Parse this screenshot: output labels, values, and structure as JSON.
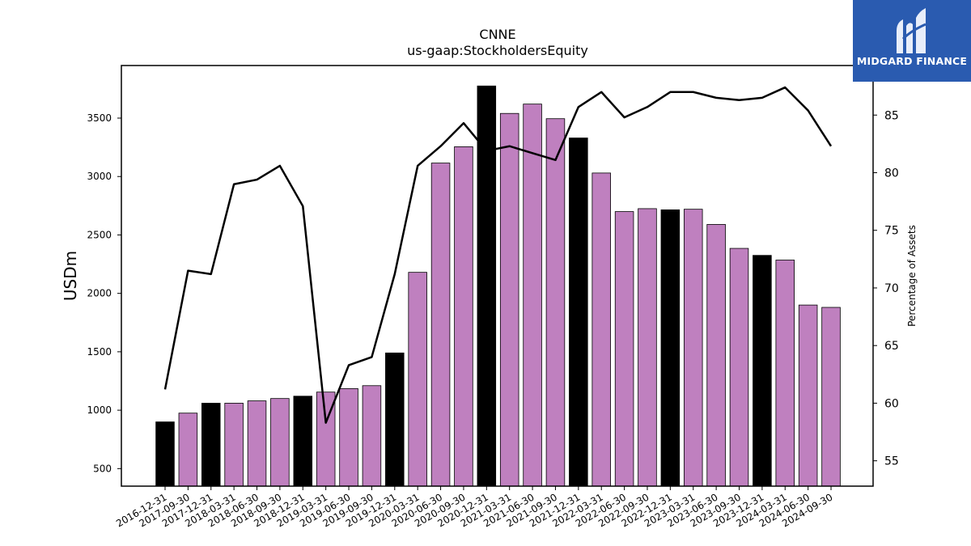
{
  "chart_data": {
    "type": "bar",
    "title": "CNNE",
    "subtitle": "us-gaap:StockholdersEquity",
    "xlabel": "",
    "ylabel": "USDm",
    "y2label": "Percentage of Assets",
    "ylim": [
      350,
      3950
    ],
    "y2lim": [
      52.8,
      89.3
    ],
    "yticks": [
      500,
      1000,
      1500,
      2000,
      2500,
      3000,
      3500
    ],
    "y2ticks": [
      55,
      60,
      65,
      70,
      75,
      80,
      85
    ],
    "categories": [
      "2016-12-31",
      "2017-09-30",
      "2017-12-31",
      "2018-03-31",
      "2018-06-30",
      "2018-09-30",
      "2018-12-31",
      "2019-03-31",
      "2019-06-30",
      "2019-09-30",
      "2019-12-31",
      "2020-03-31",
      "2020-06-30",
      "2020-09-30",
      "2020-12-31",
      "2021-03-31",
      "2021-06-30",
      "2021-09-30",
      "2021-12-31",
      "2022-03-31",
      "2022-06-30",
      "2022-09-30",
      "2022-12-31",
      "2023-03-31",
      "2023-06-30",
      "2023-09-30",
      "2023-12-31",
      "2024-03-31",
      "2024-06-30",
      "2024-09-30"
    ],
    "series": [
      {
        "type": "bar",
        "values": [
          900,
          975,
          1060,
          1060,
          1080,
          1100,
          1120,
          1155,
          1185,
          1210,
          1490,
          2180,
          3115,
          3255,
          3775,
          3540,
          3620,
          3495,
          3330,
          3030,
          2700,
          2725,
          2715,
          2720,
          2590,
          2385,
          2325,
          2285,
          1900,
          1880
        ],
        "colors": [
          "#000000",
          "#bf80bf",
          "#000000",
          "#bf80bf",
          "#bf80bf",
          "#bf80bf",
          "#000000",
          "#bf80bf",
          "#bf80bf",
          "#bf80bf",
          "#000000",
          "#bf80bf",
          "#bf80bf",
          "#bf80bf",
          "#000000",
          "#bf80bf",
          "#bf80bf",
          "#bf80bf",
          "#000000",
          "#bf80bf",
          "#bf80bf",
          "#bf80bf",
          "#000000",
          "#bf80bf",
          "#bf80bf",
          "#bf80bf",
          "#000000",
          "#bf80bf",
          "#bf80bf",
          "#bf80bf"
        ]
      },
      {
        "type": "line",
        "axis": "right",
        "color": "#000000",
        "values": [
          61.2,
          71.5,
          71.2,
          79.0,
          79.4,
          80.6,
          77.1,
          58.3,
          63.3,
          64.0,
          71.2,
          80.6,
          82.3,
          84.3,
          81.9,
          82.3,
          81.7,
          81.1,
          85.7,
          87.0,
          84.8,
          85.7,
          87.0,
          87.0,
          86.5,
          86.3,
          86.5,
          87.4,
          85.4,
          82.3
        ]
      }
    ],
    "grid": false,
    "legend": "none"
  },
  "logo": {
    "text": "MIDGARD FINANCE",
    "background": "#2a5bb0"
  }
}
